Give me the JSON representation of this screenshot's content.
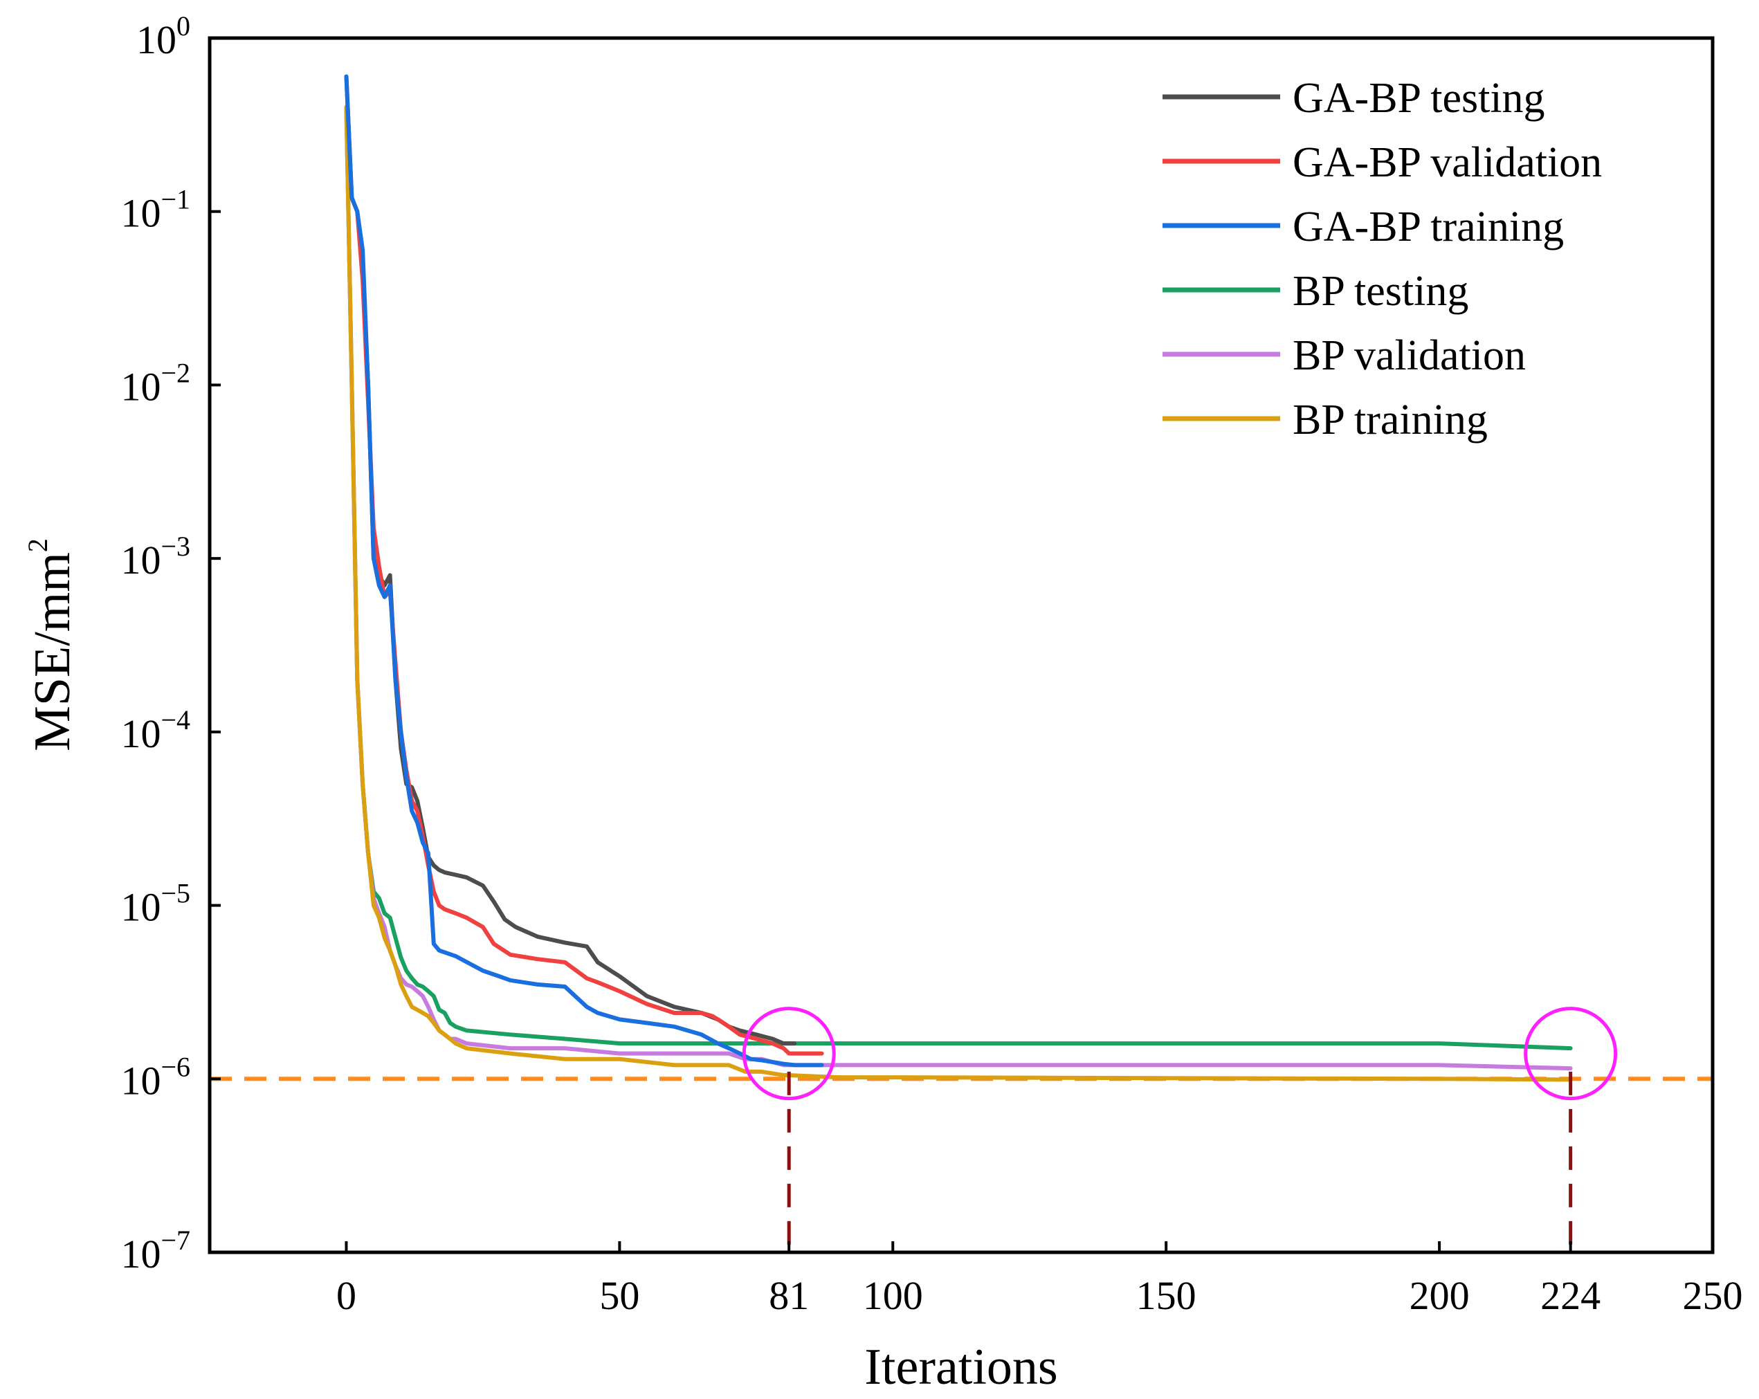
{
  "chart_data": {
    "type": "line",
    "yscale": "log",
    "xlabel": "Iterations",
    "ylabel": "MSE/mm",
    "ylabel_sup": "2",
    "xlim": [
      -25,
      250
    ],
    "ylim": [
      1e-07,
      1
    ],
    "xticks": [
      {
        "value": 0,
        "label": "0"
      },
      {
        "value": 50,
        "label": "50"
      },
      {
        "value": 81,
        "label": "81"
      },
      {
        "value": 100,
        "label": "100"
      },
      {
        "value": 150,
        "label": "150"
      },
      {
        "value": 200,
        "label": "200"
      },
      {
        "value": 224,
        "label": "224"
      },
      {
        "value": 250,
        "label": "250"
      }
    ],
    "yticks": [
      {
        "exp": 0,
        "base": "10",
        "sup": "0"
      },
      {
        "exp": -1,
        "base": "10",
        "sup": "−1"
      },
      {
        "exp": -2,
        "base": "10",
        "sup": "−2"
      },
      {
        "exp": -3,
        "base": "10",
        "sup": "−3"
      },
      {
        "exp": -4,
        "base": "10",
        "sup": "−4"
      },
      {
        "exp": -5,
        "base": "10",
        "sup": "−5"
      },
      {
        "exp": -6,
        "base": "10",
        "sup": "−6"
      },
      {
        "exp": -7,
        "base": "10",
        "sup": "−7"
      }
    ],
    "series": [
      {
        "name": "GA-BP testing",
        "color": "#4d4d4d",
        "x": [
          0,
          1,
          2,
          3,
          4,
          5,
          6,
          7,
          8,
          9,
          10,
          11,
          12,
          13,
          14,
          15,
          16,
          17,
          18,
          20,
          22,
          25,
          27,
          29,
          31,
          35,
          40,
          44,
          46,
          50,
          55,
          60,
          65,
          68,
          70,
          72,
          75,
          78,
          80,
          81,
          82
        ],
        "y": [
          0.6,
          0.12,
          0.1,
          0.05,
          0.01,
          0.001,
          0.0008,
          0.0007,
          0.0008,
          0.0002,
          8e-05,
          5e-05,
          4.8e-05,
          4e-05,
          2.8e-05,
          1.9e-05,
          1.7e-05,
          1.6e-05,
          1.55e-05,
          1.5e-05,
          1.45e-05,
          1.3e-05,
          1.05e-05,
          8.3e-06,
          7.5e-06,
          6.6e-06,
          6.1e-06,
          5.8e-06,
          4.7e-06,
          3.9e-06,
          3e-06,
          2.6e-06,
          2.4e-06,
          2.2e-06,
          2e-06,
          1.9e-06,
          1.8e-06,
          1.7e-06,
          1.6e-06,
          1.6e-06,
          1.6e-06
        ]
      },
      {
        "name": "GA-BP validation",
        "color": "#f04040",
        "x": [
          1,
          2,
          3,
          4,
          5,
          6,
          7,
          8,
          9,
          10,
          11,
          12,
          13,
          14,
          15,
          16,
          17,
          18,
          20,
          22,
          25,
          27,
          30,
          35,
          40,
          44,
          46,
          50,
          55,
          60,
          65,
          67,
          68,
          70,
          72,
          75,
          78,
          80,
          81,
          84,
          87
        ],
        "y": [
          0.12,
          0.1,
          0.04,
          0.008,
          0.0015,
          0.0009,
          0.0006,
          0.00065,
          0.00025,
          0.0001,
          6e-05,
          4e-05,
          3.5e-05,
          2.5e-05,
          1.7e-05,
          1.2e-05,
          1e-05,
          9.5e-06,
          9e-06,
          8.5e-06,
          7.5e-06,
          6e-06,
          5.2e-06,
          4.9e-06,
          4.7e-06,
          3.8e-06,
          3.6e-06,
          3.2e-06,
          2.7e-06,
          2.4e-06,
          2.4e-06,
          2.3e-06,
          2.2e-06,
          2e-06,
          1.8e-06,
          1.7e-06,
          1.6e-06,
          1.5e-06,
          1.4e-06,
          1.4e-06,
          1.4e-06
        ]
      },
      {
        "name": "GA-BP training",
        "color": "#1a6fdf",
        "x": [
          0,
          1,
          2,
          3,
          4,
          5,
          6,
          7,
          8,
          9,
          10,
          11,
          12,
          13,
          14,
          15,
          16,
          17,
          20,
          25,
          28,
          30,
          35,
          40,
          44,
          46,
          50,
          55,
          60,
          65,
          68,
          70,
          72,
          74,
          76,
          78,
          80,
          82,
          84,
          87
        ],
        "y": [
          0.6,
          0.12,
          0.1,
          0.06,
          0.01,
          0.001,
          0.0007,
          0.0006,
          0.0007,
          0.0002,
          0.0001,
          5.5e-05,
          3.5e-05,
          3e-05,
          2.3e-05,
          2e-05,
          6e-06,
          5.5e-06,
          5.1e-06,
          4.2e-06,
          3.9e-06,
          3.7e-06,
          3.5e-06,
          3.4e-06,
          2.6e-06,
          2.4e-06,
          2.2e-06,
          2.1e-06,
          2e-06,
          1.8e-06,
          1.6e-06,
          1.5e-06,
          1.4e-06,
          1.3e-06,
          1.28e-06,
          1.25e-06,
          1.22e-06,
          1.2e-06,
          1.2e-06,
          1.2e-06
        ]
      },
      {
        "name": "BP testing",
        "color": "#1aa060",
        "x": [
          0,
          1,
          2,
          3,
          4,
          5,
          6,
          7,
          8,
          9,
          10,
          11,
          12,
          13,
          14,
          15,
          16,
          17,
          18,
          19,
          20,
          22,
          30,
          40,
          50,
          60,
          70,
          80,
          90,
          100,
          150,
          200,
          224
        ],
        "y": [
          0.4,
          0.01,
          0.0002,
          5e-05,
          2e-05,
          1.2e-05,
          1.1e-05,
          9e-06,
          8.5e-06,
          6.5e-06,
          5e-06,
          4.2e-06,
          3.8e-06,
          3.5e-06,
          3.4e-06,
          3.2e-06,
          3e-06,
          2.5e-06,
          2.4e-06,
          2.1e-06,
          2e-06,
          1.9e-06,
          1.8e-06,
          1.7e-06,
          1.6e-06,
          1.6e-06,
          1.6e-06,
          1.6e-06,
          1.6e-06,
          1.6e-06,
          1.6e-06,
          1.6e-06,
          1.5e-06
        ]
      },
      {
        "name": "BP validation",
        "color": "#c77ae0",
        "x": [
          0,
          1,
          2,
          3,
          4,
          5,
          6,
          7,
          8,
          9,
          10,
          11,
          12,
          13,
          14,
          15,
          16,
          17,
          18,
          19,
          20,
          22,
          30,
          40,
          50,
          60,
          70,
          73,
          76,
          80,
          90,
          100,
          150,
          200,
          224
        ],
        "y": [
          0.4,
          0.01,
          0.0002,
          5e-05,
          2e-05,
          1.1e-05,
          9e-06,
          7.5e-06,
          5.5e-06,
          4.5e-06,
          3.8e-06,
          3.5e-06,
          3.4e-06,
          3.2e-06,
          3e-06,
          2.6e-06,
          2.2e-06,
          1.9e-06,
          1.8e-06,
          1.7e-06,
          1.7e-06,
          1.6e-06,
          1.5e-06,
          1.5e-06,
          1.4e-06,
          1.4e-06,
          1.4e-06,
          1.3e-06,
          1.3e-06,
          1.2e-06,
          1.2e-06,
          1.2e-06,
          1.2e-06,
          1.2e-06,
          1.15e-06
        ]
      },
      {
        "name": "BP training",
        "color": "#dba010",
        "x": [
          0,
          1,
          2,
          3,
          4,
          5,
          6,
          7,
          8,
          9,
          10,
          11,
          12,
          13,
          14,
          15,
          16,
          17,
          18,
          19,
          20,
          22,
          30,
          40,
          50,
          60,
          70,
          73,
          76,
          80,
          81,
          90,
          100,
          150,
          200,
          224
        ],
        "y": [
          0.4,
          0.01,
          0.0002,
          5e-05,
          2e-05,
          1e-05,
          8.5e-06,
          6.5e-06,
          5.5e-06,
          4.5e-06,
          3.5e-06,
          3e-06,
          2.6e-06,
          2.5e-06,
          2.4e-06,
          2.3e-06,
          2.1e-06,
          1.9e-06,
          1.8e-06,
          1.7e-06,
          1.6e-06,
          1.5e-06,
          1.4e-06,
          1.3e-06,
          1.3e-06,
          1.2e-06,
          1.2e-06,
          1.1e-06,
          1.1e-06,
          1.05e-06,
          1.05e-06,
          1.02e-06,
          1.02e-06,
          1.01e-06,
          1e-06,
          9.9e-07
        ]
      }
    ],
    "reference_line": {
      "y": 1e-06,
      "color": "#ff8c1a",
      "style": "dashed"
    },
    "markers": [
      {
        "x": 81,
        "y_from": 1e-07,
        "y_to": 1.1e-06,
        "color": "#8b1010",
        "style": "dashed"
      },
      {
        "x": 224,
        "y_from": 1e-07,
        "y_to": 1.1e-06,
        "color": "#8b1010",
        "style": "dashed"
      }
    ],
    "highlight_circles": [
      {
        "x": 81,
        "y": 1.4e-06,
        "color": "#ff20ff"
      },
      {
        "x": 224,
        "y": 1.4e-06,
        "color": "#ff20ff"
      }
    ],
    "legend": {
      "position": "top-right"
    }
  }
}
